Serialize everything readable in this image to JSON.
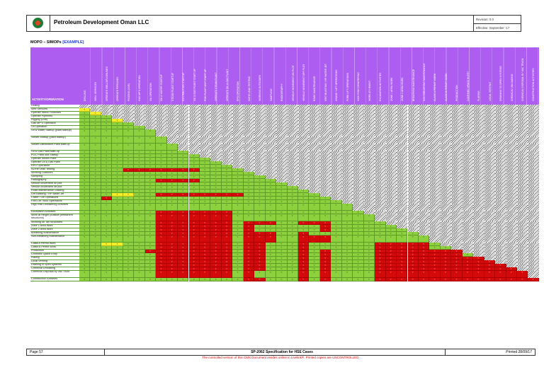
{
  "header": {
    "company": "Petroleum Development Oman LLC",
    "revision": "Revision: 0.0",
    "effective": "Effective: September -17"
  },
  "doc": {
    "title": "MOPO – SIMOPs",
    "tag": "[EXAMPLE]",
    "activity_header": "ACTIVITY/OPERATION"
  },
  "columns": [
    "DRILLING",
    "WELL SERVICES",
    "OPERATE WELLS/FLOWLINES",
    "OPERATE PIPELINES",
    "PIGGING (LIVE)",
    "GAS MP'S OPERATION",
    "OIL OPERATION",
    "OIL & WATER STARTUP",
    "STEAM PLANT STARTUP",
    "DISTRIBUTION STARTUP",
    "OIL & GAS PLANT START UP",
    "POC PLANT UNIT START UP",
    "OPERATE STEAM PLANT",
    "OPERATE OIL & GAS PLANT",
    "RPO OPERATION",
    "N2/HE LEAK TESTING",
    "WORKING OUTDOORS",
    "SAMPLING",
    "RADIOGRAPHY",
    "VEHICLE MOVEMENT ON PLOT",
    "VEHICLE MOVEMENT OFF PLOT",
    "ROAD MAINTENANCE",
    "GRIT BLASTING / HP WATER JET",
    "CRANE / LIFT OPERATIONS",
    "FORK LIFT OPERATIONS",
    "HIGH RISK DEWATERING",
    "WORK AT HEIGHT",
    "EXCAVATION ACTIVITIES",
    "ZONE 1 AREA WORK",
    "ZONE 2 AREA WORK",
    "BREATHING MAINTENANCE",
    "NON BREATHING MAINTENANCE",
    "CLASS A PERMIT WORK",
    "CLASS B PERMIT WORK",
    "PRODUCTION",
    "CONFINED SPACE ENTRY",
    "FLARING",
    "LOCAL VENTING",
    "DRAINING TO OPEN SYSTEMS",
    "CHEMICAL UNLOADING",
    "CHEMICAL DISPOSAL BY VAC TRUCK",
    "CONSTRUCTION ACTIVITIES"
  ],
  "rows": [
    "Drilling",
    "Well Services",
    "Operate Wells/ Flowlines",
    "Operate Pipelines",
    "Pigging (Live)",
    "Gas MP'S Operation",
    "Oil Operation",
    "Oil & Water Startup (plant startup)",
    "Steam Startup (plant startup)",
    "Steam Distribution Plant start-up",
    "Oil & Gas Plant start-up",
    "POC Plant unit Startup",
    "Operate Steam Plant",
    "Operate Oil & Gas Plant",
    "RPO Operation",
    "N2/He Leak Testing",
    "Working Outdoors",
    "Sampling",
    "Radiography",
    "Vehicle Movement on plot",
    "Vehicle Movement off plot",
    "Road Maintenance Grading",
    "Grit Blasting / HP Water Jet",
    "Crane / Lift Operations",
    "Fork Lift Truck Operations",
    "High Risk Dewatering Activities",
    "Excavation Activities",
    "Work at Height (outside permanent structures)",
    "Working on Tall Structures",
    "Zone 1 Area Work",
    "Zone 2 Area Work",
    "Breathing Maintenance",
    "Non-Breathing Maintenance",
    "Class A Permit Work",
    "Class B Permit Work",
    "Production",
    "Confined Space Entry",
    "Flaring",
    "Local Venting",
    "Draining to open systems",
    "Chemical Unloading",
    "Chemical Disposal by Vac Truck",
    "Construction Activities"
  ],
  "cell_value": "Y",
  "colors": {
    "purple": "#ad5df0",
    "green": "#8ed13f",
    "red": "#d40a0a",
    "yellow": "#f2ef2a"
  },
  "footer": {
    "page": "Page 57",
    "spec": "SP-2062 Specification for HSE Cases",
    "printed": "Printed 28/09/17",
    "notice": "The controlled version of this CMS Document resides online in Livelink®. Printed copies are UNCONTROLLED."
  }
}
